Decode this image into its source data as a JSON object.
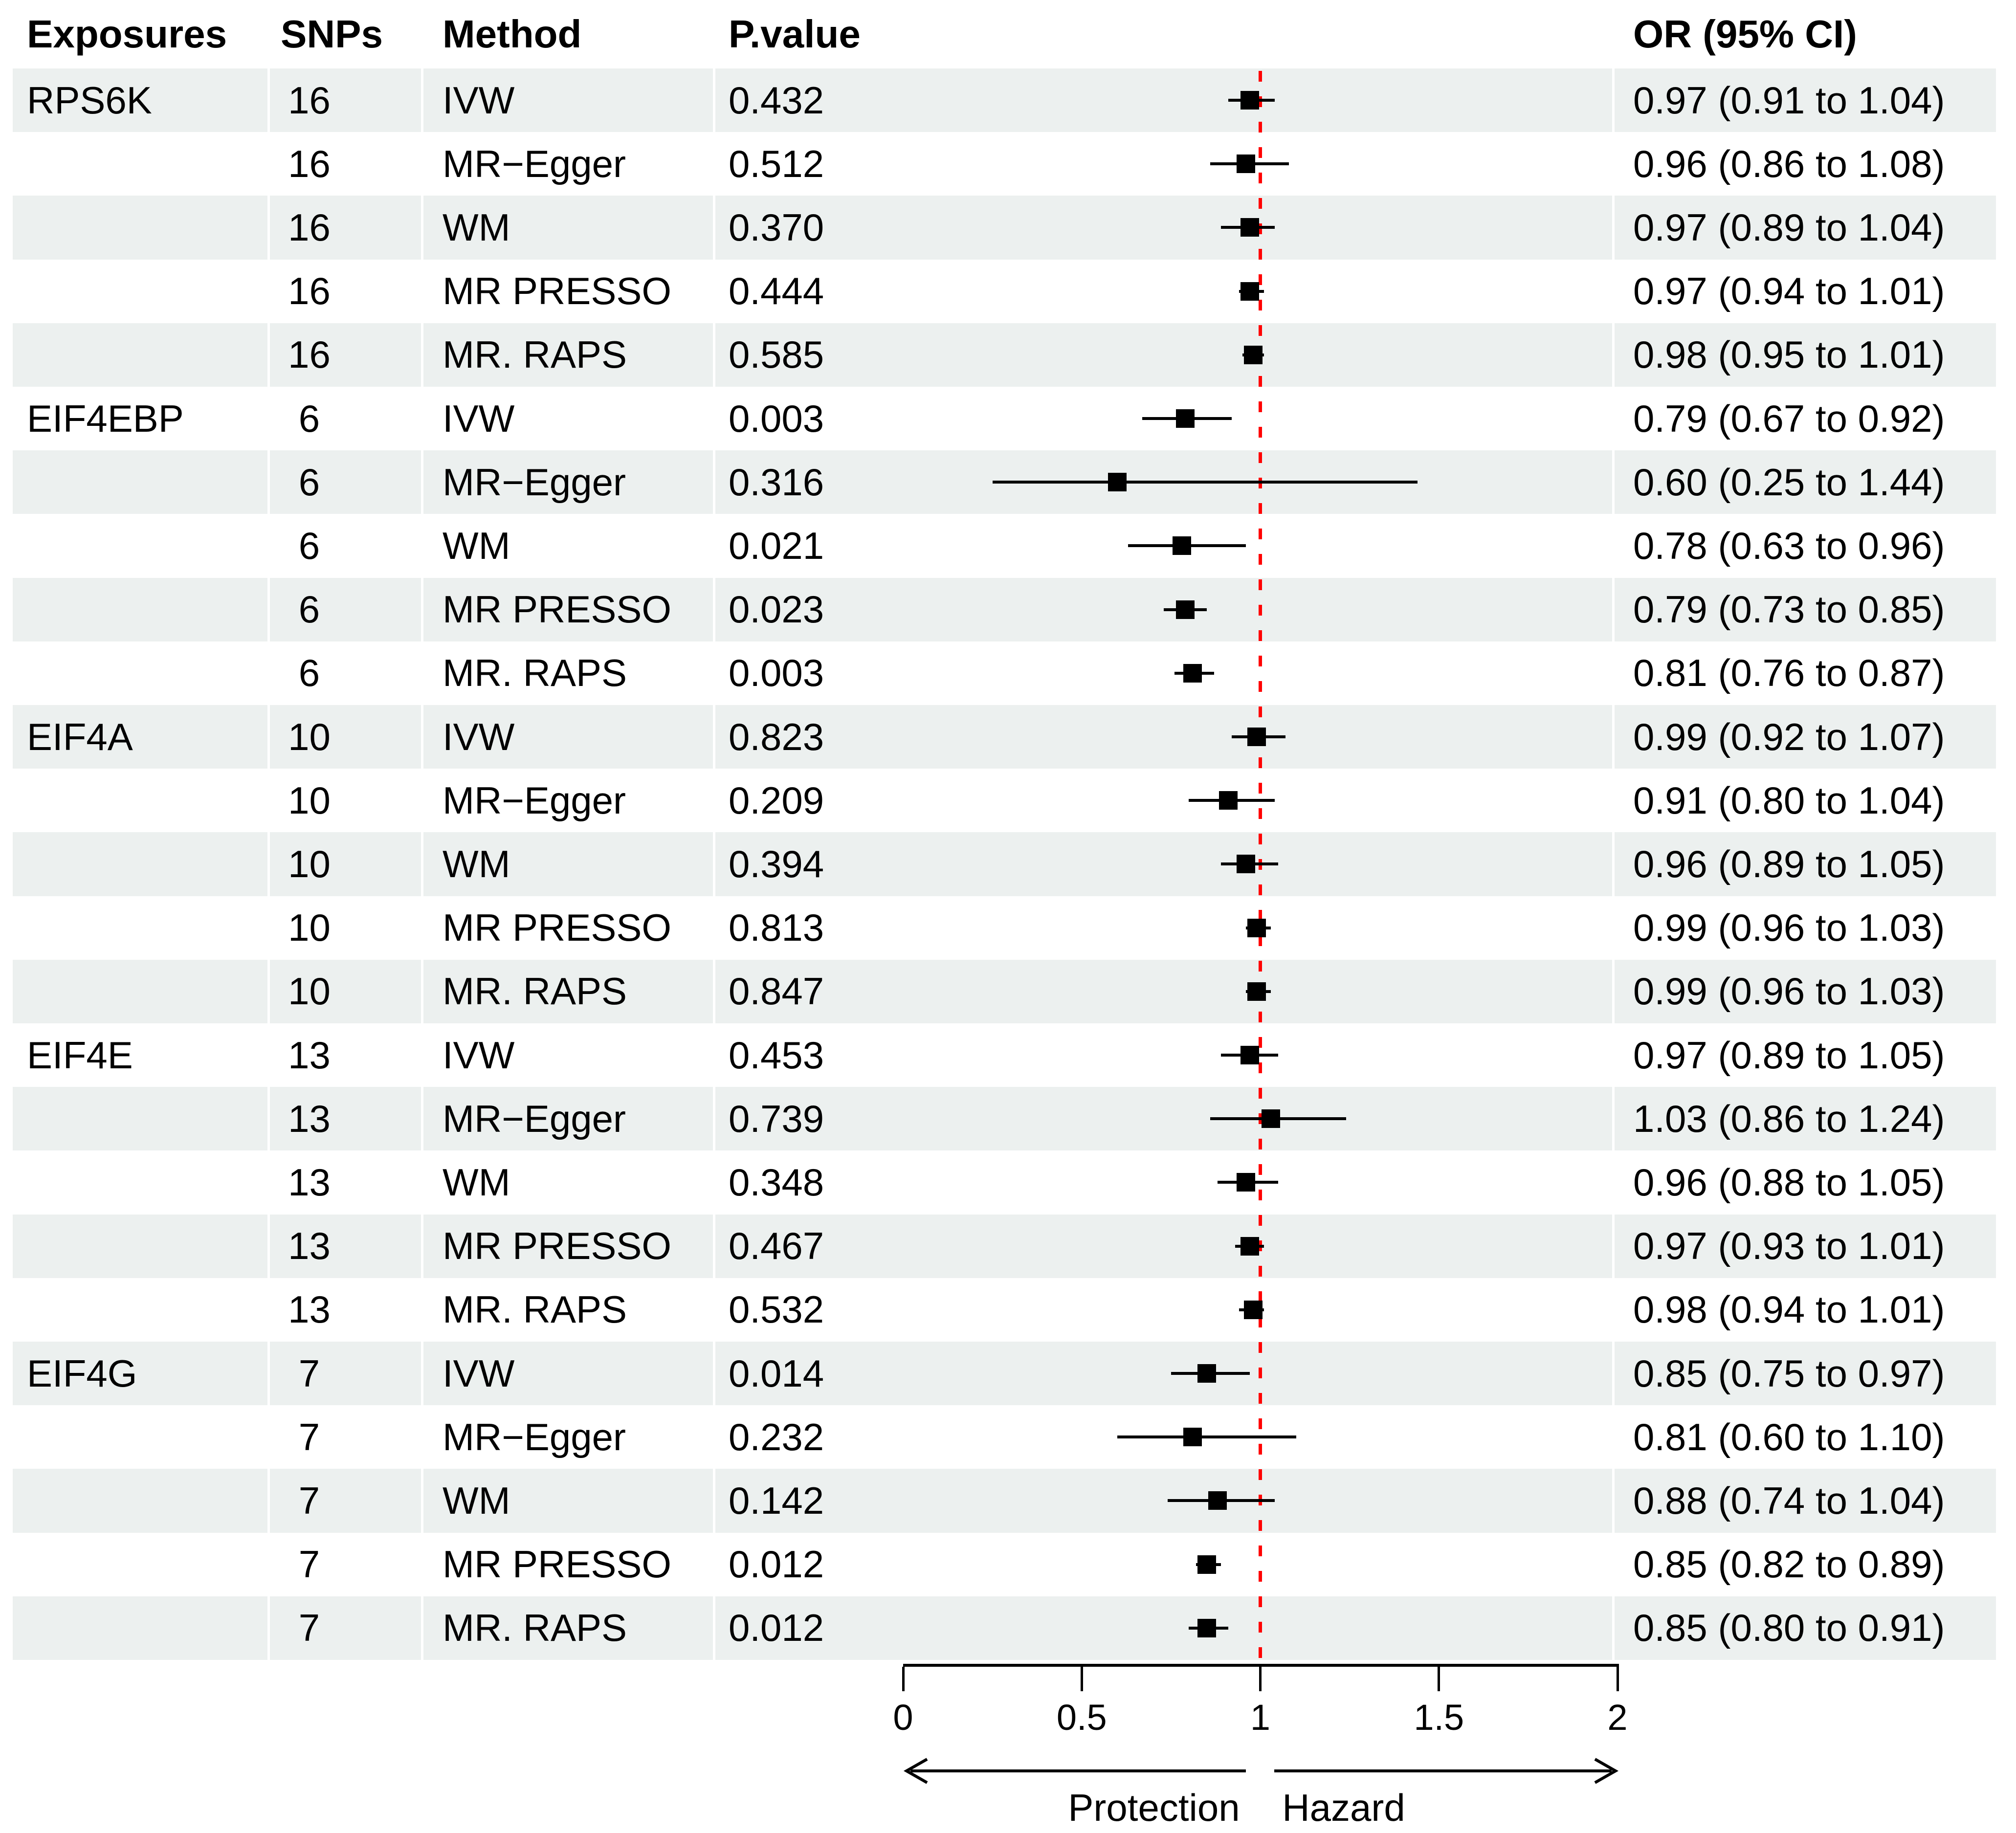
{
  "table_header": {
    "exposures": "Exposures",
    "snps": "SNPs",
    "method": "Method",
    "pvalue": "P.value",
    "or_ci": "OR (95% CI)"
  },
  "colors": {
    "stripe": "#ECF0EF",
    "marker": "#000000",
    "reference_line": "#FF0000"
  },
  "chart_data": {
    "type": "forest",
    "title": "",
    "xlabel_ticks": [
      "0",
      "0.5",
      "1",
      "1.5",
      "2"
    ],
    "axis": {
      "min": 0,
      "max": 2,
      "reference": 1,
      "ticks": [
        {
          "v": 0,
          "label": "0"
        },
        {
          "v": 0.5,
          "label": "0.5"
        },
        {
          "v": 1,
          "label": "1"
        },
        {
          "v": 1.5,
          "label": "1.5"
        },
        {
          "v": 2,
          "label": "2"
        }
      ],
      "left_label": "Protection",
      "right_label": "Hazard"
    },
    "rows": [
      {
        "exposure": "RPS6K",
        "snps": "16",
        "method": "IVW",
        "pvalue": "0.432",
        "or": 0.97,
        "lo": 0.91,
        "hi": 1.04,
        "or_text": "0.97 (0.91 to 1.04)",
        "shaded": true
      },
      {
        "exposure": "",
        "snps": "16",
        "method": "MR−Egger",
        "pvalue": "0.512",
        "or": 0.96,
        "lo": 0.86,
        "hi": 1.08,
        "or_text": "0.96 (0.86 to 1.08)",
        "shaded": false
      },
      {
        "exposure": "",
        "snps": "16",
        "method": "WM",
        "pvalue": "0.370",
        "or": 0.97,
        "lo": 0.89,
        "hi": 1.04,
        "or_text": "0.97 (0.89 to 1.04)",
        "shaded": true
      },
      {
        "exposure": "",
        "snps": "16",
        "method": "MR PRESSO",
        "pvalue": "0.444",
        "or": 0.97,
        "lo": 0.94,
        "hi": 1.01,
        "or_text": "0.97 (0.94 to 1.01)",
        "shaded": false
      },
      {
        "exposure": "",
        "snps": "16",
        "method": "MR. RAPS",
        "pvalue": "0.585",
        "or": 0.98,
        "lo": 0.95,
        "hi": 1.01,
        "or_text": "0.98 (0.95 to 1.01)",
        "shaded": true
      },
      {
        "exposure": "EIF4EBP",
        "snps": "6",
        "method": "IVW",
        "pvalue": "0.003",
        "or": 0.79,
        "lo": 0.67,
        "hi": 0.92,
        "or_text": "0.79 (0.67 to 0.92)",
        "shaded": false
      },
      {
        "exposure": "",
        "snps": "6",
        "method": "MR−Egger",
        "pvalue": "0.316",
        "or": 0.6,
        "lo": 0.25,
        "hi": 1.44,
        "or_text": "0.60 (0.25 to 1.44)",
        "shaded": true
      },
      {
        "exposure": "",
        "snps": "6",
        "method": "WM",
        "pvalue": "0.021",
        "or": 0.78,
        "lo": 0.63,
        "hi": 0.96,
        "or_text": "0.78 (0.63 to 0.96)",
        "shaded": false
      },
      {
        "exposure": "",
        "snps": "6",
        "method": "MR PRESSO",
        "pvalue": "0.023",
        "or": 0.79,
        "lo": 0.73,
        "hi": 0.85,
        "or_text": "0.79 (0.73 to 0.85)",
        "shaded": true
      },
      {
        "exposure": "",
        "snps": "6",
        "method": "MR. RAPS",
        "pvalue": "0.003",
        "or": 0.81,
        "lo": 0.76,
        "hi": 0.87,
        "or_text": "0.81 (0.76 to 0.87)",
        "shaded": false
      },
      {
        "exposure": "EIF4A",
        "snps": "10",
        "method": "IVW",
        "pvalue": "0.823",
        "or": 0.99,
        "lo": 0.92,
        "hi": 1.07,
        "or_text": "0.99 (0.92 to 1.07)",
        "shaded": true
      },
      {
        "exposure": "",
        "snps": "10",
        "method": "MR−Egger",
        "pvalue": "0.209",
        "or": 0.91,
        "lo": 0.8,
        "hi": 1.04,
        "or_text": "0.91 (0.80 to 1.04)",
        "shaded": false
      },
      {
        "exposure": "",
        "snps": "10",
        "method": "WM",
        "pvalue": "0.394",
        "or": 0.96,
        "lo": 0.89,
        "hi": 1.05,
        "or_text": "0.96 (0.89 to 1.05)",
        "shaded": true
      },
      {
        "exposure": "",
        "snps": "10",
        "method": "MR PRESSO",
        "pvalue": "0.813",
        "or": 0.99,
        "lo": 0.96,
        "hi": 1.03,
        "or_text": "0.99 (0.96 to 1.03)",
        "shaded": false
      },
      {
        "exposure": "",
        "snps": "10",
        "method": "MR. RAPS",
        "pvalue": "0.847",
        "or": 0.99,
        "lo": 0.96,
        "hi": 1.03,
        "or_text": "0.99 (0.96 to 1.03)",
        "shaded": true
      },
      {
        "exposure": "EIF4E",
        "snps": "13",
        "method": "IVW",
        "pvalue": "0.453",
        "or": 0.97,
        "lo": 0.89,
        "hi": 1.05,
        "or_text": "0.97 (0.89 to 1.05)",
        "shaded": false
      },
      {
        "exposure": "",
        "snps": "13",
        "method": "MR−Egger",
        "pvalue": "0.739",
        "or": 1.03,
        "lo": 0.86,
        "hi": 1.24,
        "or_text": "1.03 (0.86 to 1.24)",
        "shaded": true
      },
      {
        "exposure": "",
        "snps": "13",
        "method": "WM",
        "pvalue": "0.348",
        "or": 0.96,
        "lo": 0.88,
        "hi": 1.05,
        "or_text": "0.96 (0.88 to 1.05)",
        "shaded": false
      },
      {
        "exposure": "",
        "snps": "13",
        "method": "MR PRESSO",
        "pvalue": "0.467",
        "or": 0.97,
        "lo": 0.93,
        "hi": 1.01,
        "or_text": "0.97 (0.93 to 1.01)",
        "shaded": true
      },
      {
        "exposure": "",
        "snps": "13",
        "method": "MR. RAPS",
        "pvalue": "0.532",
        "or": 0.98,
        "lo": 0.94,
        "hi": 1.01,
        "or_text": "0.98 (0.94 to 1.01)",
        "shaded": false
      },
      {
        "exposure": "EIF4G",
        "snps": "7",
        "method": "IVW",
        "pvalue": "0.014",
        "or": 0.85,
        "lo": 0.75,
        "hi": 0.97,
        "or_text": "0.85 (0.75 to 0.97)",
        "shaded": true
      },
      {
        "exposure": "",
        "snps": "7",
        "method": "MR−Egger",
        "pvalue": "0.232",
        "or": 0.81,
        "lo": 0.6,
        "hi": 1.1,
        "or_text": "0.81 (0.60 to 1.10)",
        "shaded": false
      },
      {
        "exposure": "",
        "snps": "7",
        "method": "WM",
        "pvalue": "0.142",
        "or": 0.88,
        "lo": 0.74,
        "hi": 1.04,
        "or_text": "0.88 (0.74 to 1.04)",
        "shaded": true
      },
      {
        "exposure": "",
        "snps": "7",
        "method": "MR PRESSO",
        "pvalue": "0.012",
        "or": 0.85,
        "lo": 0.82,
        "hi": 0.89,
        "or_text": "0.85 (0.82 to 0.89)",
        "shaded": false
      },
      {
        "exposure": "",
        "snps": "7",
        "method": "MR. RAPS",
        "pvalue": "0.012",
        "or": 0.85,
        "lo": 0.8,
        "hi": 0.91,
        "or_text": "0.85 (0.80 to 0.91)",
        "shaded": true
      }
    ]
  }
}
